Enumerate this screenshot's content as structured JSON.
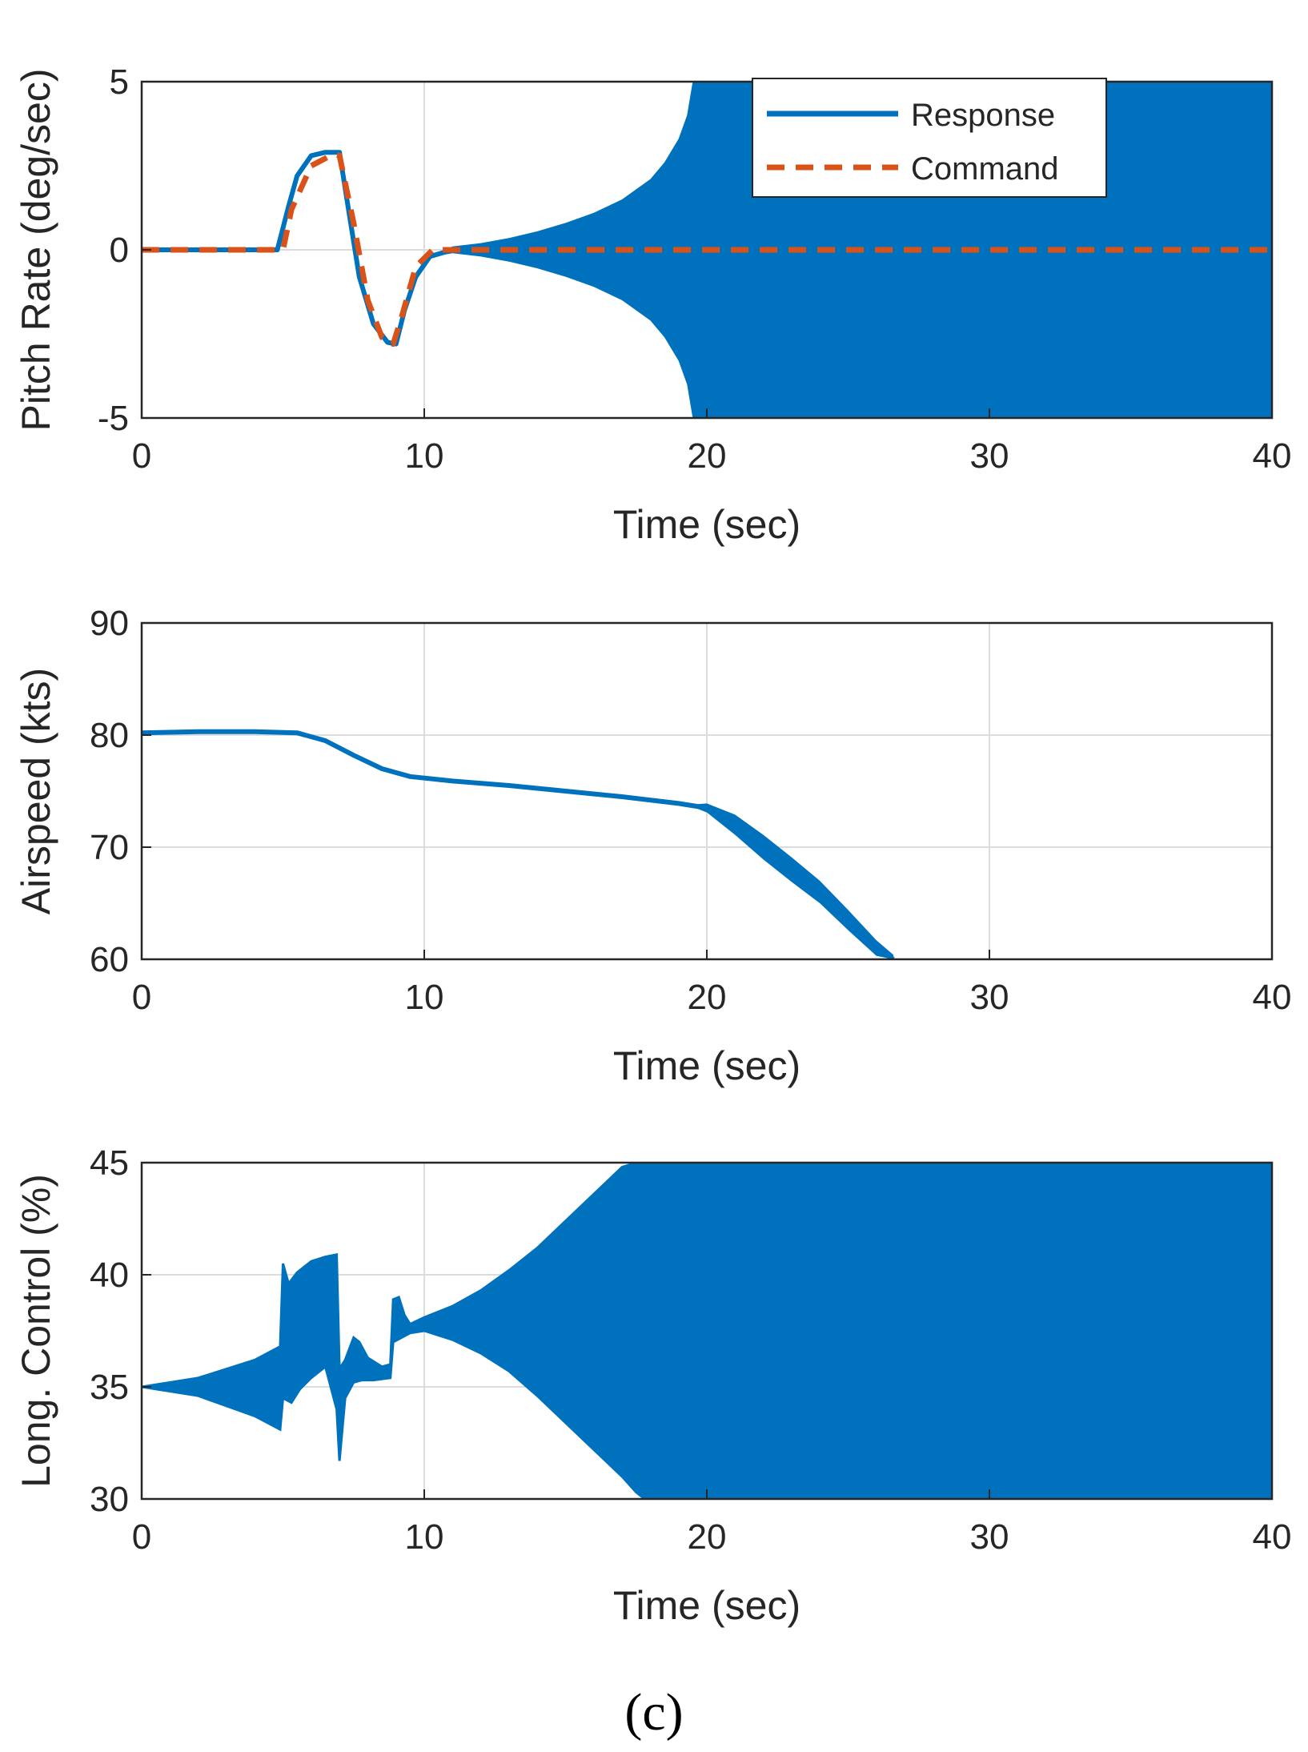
{
  "caption": "(c)",
  "colors": {
    "response": "#0072BD",
    "command": "#D95319",
    "axis": "#262626",
    "grid": "#dcdcdc"
  },
  "chart_data": [
    {
      "type": "line",
      "title": "",
      "xlabel": "Time (sec)",
      "ylabel": "Pitch Rate (deg/sec)",
      "xlim": [
        0,
        40
      ],
      "ylim": [
        -5,
        5
      ],
      "xticks": [
        "0",
        "10",
        "20",
        "30",
        "40"
      ],
      "yticks": [
        "-5",
        "0",
        "5"
      ],
      "grid": true,
      "legend": {
        "position": "top-right",
        "entries": [
          "Response",
          "Command"
        ]
      },
      "series": [
        {
          "name": "Response",
          "style": "solid",
          "x": [
            0,
            4.8,
            5.2,
            5.5,
            6.0,
            6.5,
            7.0,
            7.3,
            7.7,
            8.2,
            8.7,
            9.0,
            9.3,
            9.7,
            10.2,
            11,
            12,
            13,
            14,
            15,
            16,
            17,
            18,
            19,
            19.5,
            20,
            25,
            30,
            35,
            40
          ],
          "y": [
            0,
            0,
            1.3,
            2.2,
            2.8,
            2.9,
            2.9,
            1.3,
            -0.8,
            -2.2,
            -2.75,
            -2.8,
            -1.8,
            -0.8,
            -0.2,
            0,
            0,
            0,
            0,
            0,
            0,
            0,
            0,
            0,
            0,
            0,
            0,
            0,
            0,
            0
          ],
          "envelope": {
            "x": [
              10.5,
              11,
              12,
              13,
              14,
              15,
              16,
              17,
              18,
              18.5,
              19,
              19.3,
              19.5,
              19.7,
              20,
              25,
              30,
              35,
              40
            ],
            "half_width": [
              0.05,
              0.1,
              0.2,
              0.35,
              0.55,
              0.8,
              1.1,
              1.5,
              2.1,
              2.6,
              3.3,
              4.0,
              5,
              5,
              5,
              5,
              5,
              5,
              5
            ]
          }
        },
        {
          "name": "Command",
          "style": "dashed",
          "x": [
            0,
            5.0,
            5.3,
            6.0,
            6.8,
            7.0,
            7.5,
            8.0,
            8.5,
            8.9,
            9.2,
            9.7,
            10.3,
            11,
            40
          ],
          "y": [
            0,
            0,
            1.2,
            2.5,
            2.85,
            2.8,
            0.8,
            -1.5,
            -2.6,
            -2.8,
            -2.0,
            -0.5,
            0,
            0,
            0
          ]
        }
      ]
    },
    {
      "type": "line",
      "title": "",
      "xlabel": "Time (sec)",
      "ylabel": "Airspeed (kts)",
      "xlim": [
        0,
        40
      ],
      "ylim": [
        60,
        90
      ],
      "xticks": [
        "0",
        "10",
        "20",
        "30",
        "40"
      ],
      "yticks": [
        "60",
        "70",
        "80",
        "90"
      ],
      "grid": true,
      "series": [
        {
          "name": "Airspeed",
          "style": "solid",
          "x": [
            0,
            2,
            4,
            5.5,
            6.5,
            7.5,
            8.5,
            9.5,
            11,
            13,
            15,
            17,
            19,
            20,
            21,
            22,
            23,
            24,
            25,
            26,
            26.6
          ],
          "y": [
            80.2,
            80.3,
            80.3,
            80.2,
            79.5,
            78.2,
            77,
            76.3,
            75.9,
            75.5,
            75.0,
            74.5,
            73.9,
            73.5,
            72.0,
            70.0,
            68.0,
            66.0,
            63.5,
            61.0,
            60
          ],
          "envelope": {
            "x": [
              19.5,
              20,
              21,
              22,
              23,
              24,
              25,
              26,
              26.6
            ],
            "half_width": [
              0.1,
              0.4,
              0.9,
              1.1,
              1.1,
              1.0,
              0.9,
              0.7,
              0.4
            ]
          }
        }
      ]
    },
    {
      "type": "line",
      "title": "",
      "xlabel": "Time (sec)",
      "ylabel": "Long. Control (%)",
      "xlim": [
        0,
        40
      ],
      "ylim": [
        30,
        45
      ],
      "xticks": [
        "0",
        "10",
        "20",
        "30",
        "40"
      ],
      "yticks": [
        "30",
        "35",
        "40",
        "45"
      ],
      "grid": true,
      "series": [
        {
          "name": "Long. Control",
          "style": "solid",
          "envelope_upper": {
            "x": [
              0,
              2,
              4,
              4.9,
              5.0,
              5.2,
              5.5,
              6.0,
              6.5,
              6.9,
              7.0,
              7.2,
              7.5,
              7.7,
              8.0,
              8.5,
              8.8,
              8.9,
              9.1,
              9.3,
              9.5,
              10,
              11,
              12,
              13,
              14,
              15,
              16,
              17,
              17.5,
              40
            ],
            "y": [
              35,
              35.4,
              36.2,
              36.8,
              40.5,
              39.6,
              40.1,
              40.6,
              40.8,
              40.9,
              35.8,
              36.2,
              37.2,
              37,
              36.3,
              35.9,
              36.0,
              38.9,
              39.0,
              38.2,
              37.8,
              38.1,
              38.6,
              39.3,
              40.2,
              41.2,
              42.4,
              43.6,
              44.8,
              45,
              45
            ]
          },
          "envelope_lower": {
            "x": [
              0,
              2,
              4,
              4.9,
              5.0,
              5.3,
              5.6,
              6.0,
              6.5,
              6.9,
              7.0,
              7.2,
              7.5,
              7.8,
              8.2,
              8.8,
              8.9,
              9.2,
              9.5,
              10,
              11,
              12,
              13,
              14,
              15,
              16,
              17,
              17.5,
              17.8,
              40
            ],
            "y": [
              35,
              34.6,
              33.7,
              33.1,
              34.5,
              34.3,
              34.9,
              35.4,
              35.9,
              34.0,
              31.7,
              34.5,
              35.2,
              35.3,
              35.3,
              35.4,
              37.0,
              37.2,
              37.4,
              37.5,
              37.1,
              36.5,
              35.7,
              34.6,
              33.4,
              32.2,
              31.0,
              30.3,
              30,
              30
            ]
          }
        }
      ]
    }
  ]
}
